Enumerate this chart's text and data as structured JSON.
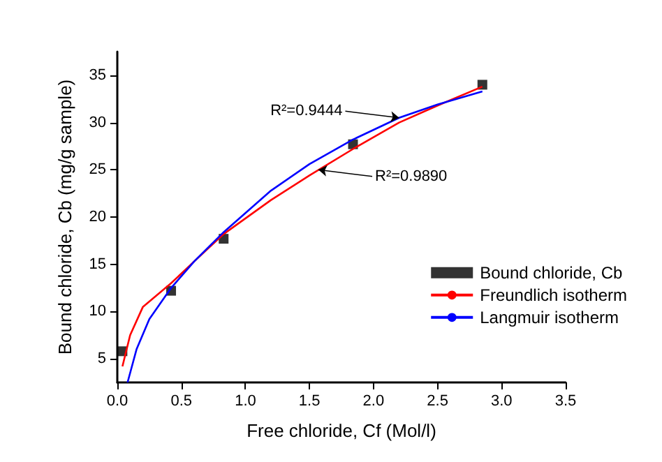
{
  "chart_data": {
    "type": "line",
    "xlabel": "Free chloride, Cf (Mol/l)",
    "ylabel": "Bound chloride, Cb (mg/g sample)",
    "xlim": [
      0,
      3.5
    ],
    "xticks": [
      {
        "value": 0,
        "label": "0.0"
      },
      0.5,
      {
        "value": 1,
        "label": "1.0"
      },
      1.5,
      {
        "value": 2,
        "label": "2.0"
      },
      2.5,
      {
        "value": 3,
        "label": "3.0"
      },
      3.5
    ],
    "ylim": [
      2.5,
      37.5
    ],
    "yticks": [
      5,
      10,
      15,
      20,
      25,
      30,
      35
    ],
    "grid": false,
    "legend": "right",
    "series": [
      {
        "name": "Bound chloride, Cb",
        "type": "scatter",
        "marker": "square",
        "color": "#000000",
        "x": [
          0.04,
          0.42,
          0.83,
          1.84,
          2.85
        ],
        "values": [
          5.8,
          12.2,
          17.7,
          27.7,
          34.0
        ]
      },
      {
        "name": "Freundlich isotherm",
        "marker": "none",
        "color": "#ff0000",
        "x": [
          0.04,
          0.1,
          0.2,
          0.42,
          0.6,
          0.83,
          1.2,
          1.5,
          1.84,
          2.2,
          2.5,
          2.85
        ],
        "values": [
          4.2,
          7.5,
          10.5,
          13,
          15.3,
          18.2,
          21.8,
          24.4,
          27.2,
          30,
          31.8,
          33.8
        ]
      },
      {
        "name": "Langmuir isotherm",
        "marker": "none",
        "color": "#0000ff",
        "x": [
          0.08,
          0.15,
          0.25,
          0.42,
          0.6,
          0.83,
          1.2,
          1.5,
          1.84,
          2.2,
          2.5,
          2.85
        ],
        "values": [
          2.5,
          6,
          9.2,
          12.5,
          15.3,
          18.4,
          22.8,
          25.6,
          28.2,
          30.5,
          31.9,
          33.3
        ]
      }
    ],
    "annotations": [
      {
        "text": "R²=0.9444",
        "x": 2.2,
        "y": 30.5
      },
      {
        "text": "R²=0.9890",
        "x": 1.57,
        "y": 25.0
      }
    ]
  }
}
